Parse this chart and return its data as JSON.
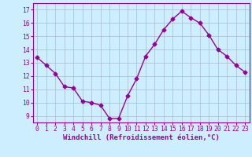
{
  "x": [
    0,
    1,
    2,
    3,
    4,
    5,
    6,
    7,
    8,
    9,
    10,
    11,
    12,
    13,
    14,
    15,
    16,
    17,
    18,
    19,
    20,
    21,
    22,
    23
  ],
  "y": [
    13.4,
    12.8,
    12.2,
    11.2,
    11.1,
    10.1,
    10.0,
    9.8,
    8.8,
    8.8,
    10.5,
    11.8,
    13.5,
    14.4,
    15.5,
    16.3,
    16.9,
    16.4,
    16.0,
    15.1,
    14.0,
    13.5,
    12.8,
    12.3
  ],
  "line_color": "#990099",
  "marker": "D",
  "marker_size": 2.5,
  "bg_color": "#cceeff",
  "grid_color": "#aabbcc",
  "xlabel": "Windchill (Refroidissement éolien,°C)",
  "xlabel_color": "#990099",
  "xlabel_fontsize": 6.5,
  "ylabel_ticks": [
    9,
    10,
    11,
    12,
    13,
    14,
    15,
    16,
    17
  ],
  "xlim": [
    -0.5,
    23.5
  ],
  "ylim": [
    8.5,
    17.5
  ],
  "xtick_labels": [
    "0",
    "1",
    "2",
    "3",
    "4",
    "5",
    "6",
    "7",
    "8",
    "9",
    "10",
    "11",
    "12",
    "13",
    "14",
    "15",
    "16",
    "17",
    "18",
    "19",
    "20",
    "21",
    "22",
    "23"
  ],
  "tick_color": "#990099",
  "tick_fontsize": 5.8,
  "spine_color": "#990099",
  "xlabel_bold": true
}
